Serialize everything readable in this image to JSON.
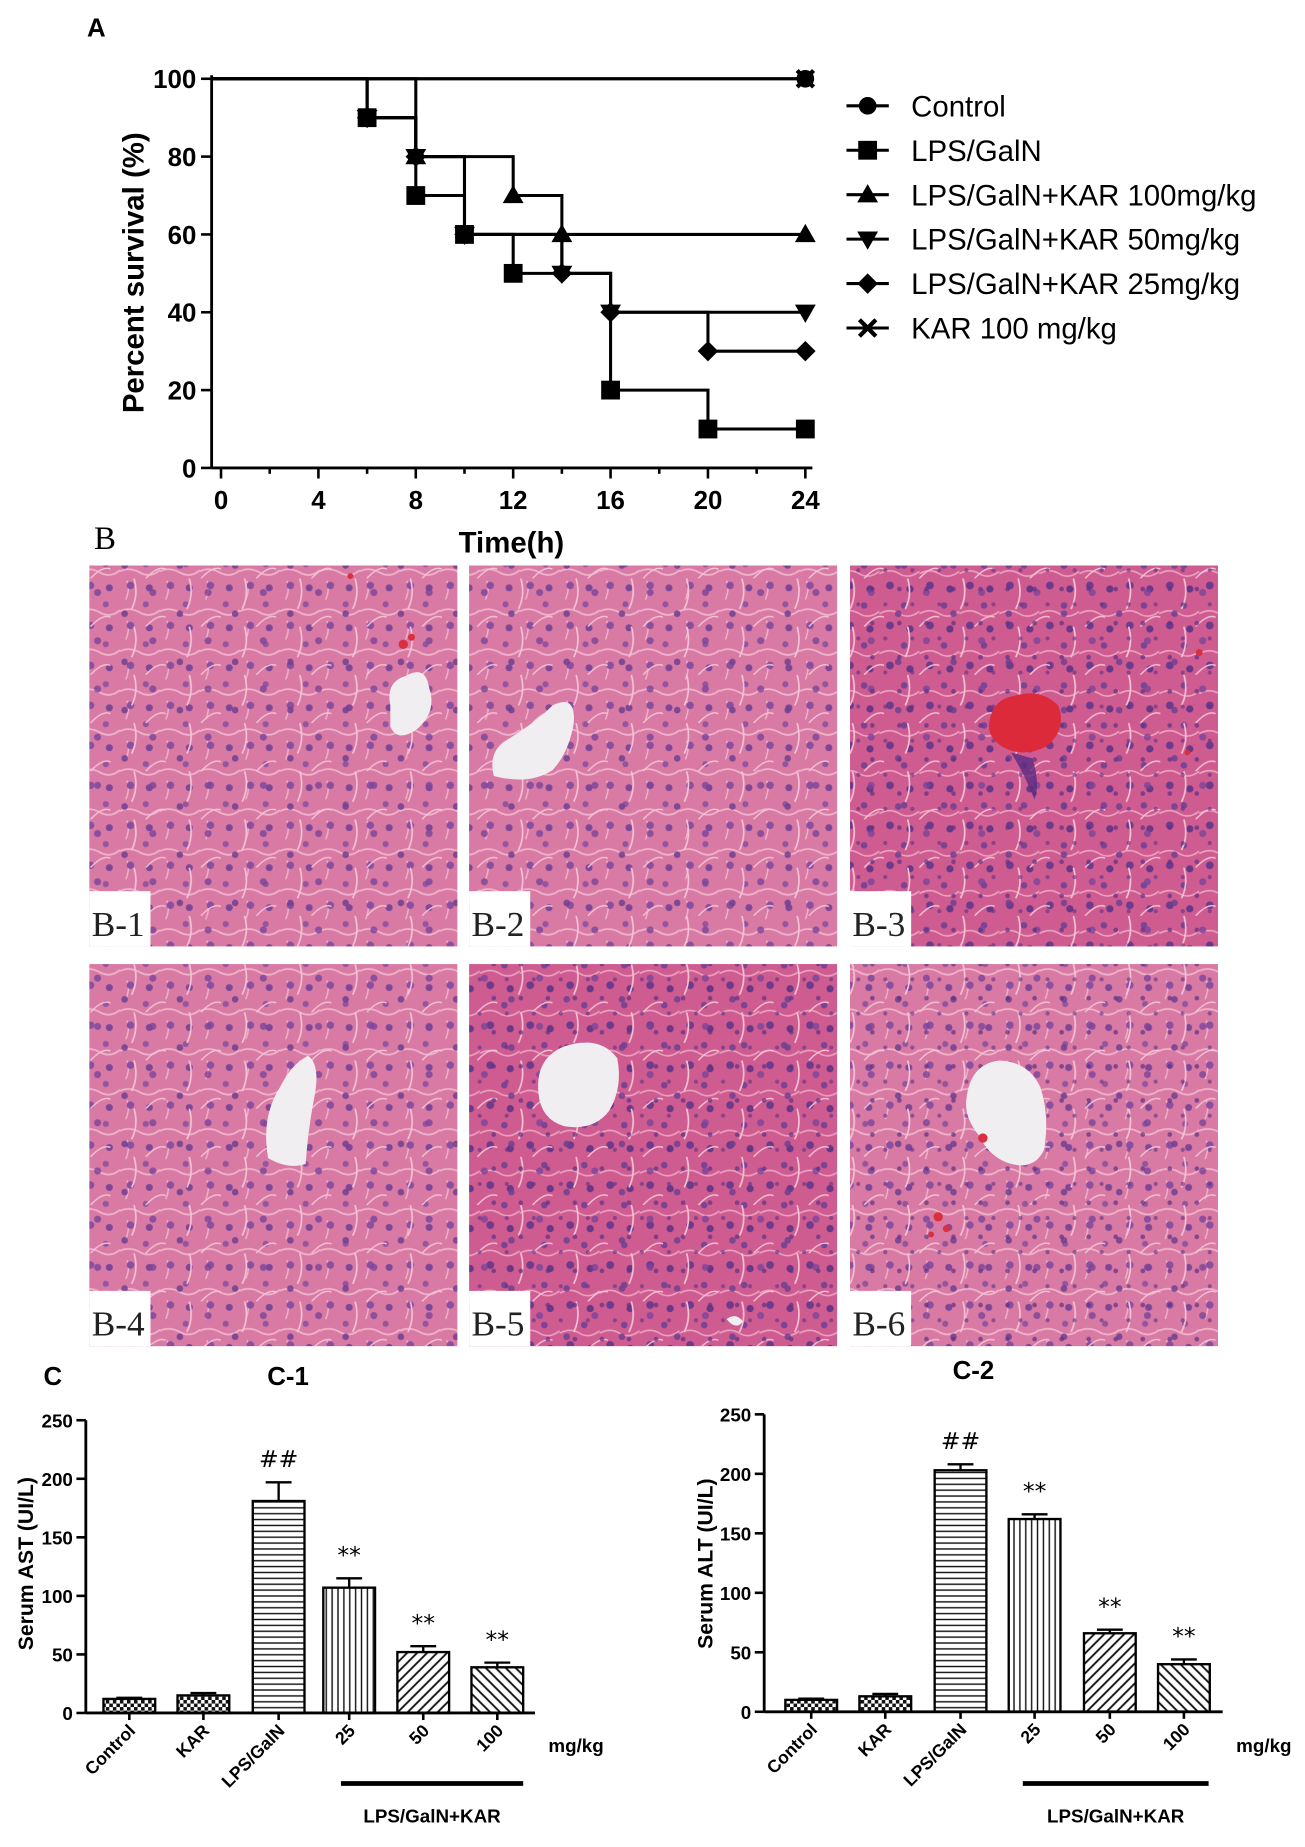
{
  "panel_labels": {
    "a": "A",
    "b": "B",
    "c": "C"
  },
  "histology": {
    "panels": [
      {
        "label": "B-1"
      },
      {
        "label": "B-2"
      },
      {
        "label": "B-3"
      },
      {
        "label": "B-4"
      },
      {
        "label": "B-5"
      },
      {
        "label": "B-6"
      }
    ]
  },
  "chart_data": [
    {
      "panel": "A",
      "type": "line",
      "step": true,
      "xlabel": "Time(h)",
      "ylabel": "Percent survival (%)",
      "xlim": [
        0,
        24
      ],
      "ylim": [
        0,
        100
      ],
      "xticks": [
        0,
        4,
        8,
        12,
        16,
        20,
        24
      ],
      "yticks": [
        0,
        20,
        40,
        60,
        80,
        100
      ],
      "grid": false,
      "legend": "right",
      "series": [
        {
          "name": "Control",
          "marker": "circle",
          "x": [
            0,
            24
          ],
          "y": [
            100,
            100
          ]
        },
        {
          "name": "LPS/GalN",
          "marker": "square",
          "x": [
            0,
            6,
            8,
            10,
            12,
            16,
            20,
            24
          ],
          "y": [
            100,
            90,
            70,
            60,
            50,
            20,
            10,
            10
          ]
        },
        {
          "name": "LPS/GalN+KAR 100mg/kg",
          "marker": "triangle-up",
          "x": [
            0,
            8,
            12,
            14,
            24
          ],
          "y": [
            100,
            80,
            70,
            60,
            60
          ]
        },
        {
          "name": "LPS/GalN+KAR 50mg/kg",
          "marker": "triangle-down",
          "x": [
            0,
            6,
            8,
            10,
            14,
            16,
            24
          ],
          "y": [
            100,
            90,
            80,
            60,
            50,
            40,
            40
          ]
        },
        {
          "name": "LPS/GalN+KAR 25mg/kg",
          "marker": "diamond",
          "x": [
            0,
            6,
            8,
            10,
            14,
            16,
            20,
            24
          ],
          "y": [
            100,
            90,
            80,
            60,
            50,
            40,
            30,
            30
          ]
        },
        {
          "name": "KAR 100 mg/kg",
          "marker": "cross",
          "x": [
            0,
            24
          ],
          "y": [
            100,
            100
          ]
        }
      ]
    },
    {
      "panel": "C-1",
      "type": "bar",
      "title": "C-1",
      "ylabel": "Serum AST (UI/L)",
      "ylim": [
        0,
        250
      ],
      "yticks": [
        0,
        50,
        100,
        150,
        200,
        250
      ],
      "categories": [
        "Control",
        "KAR",
        "LPS/GalN",
        "25",
        "50",
        "100"
      ],
      "values": [
        12,
        15,
        181,
        107,
        52,
        39
      ],
      "errors": [
        1,
        2,
        16,
        8,
        5,
        4
      ],
      "annotations": [
        "",
        "",
        "##",
        "**",
        "**",
        "**"
      ],
      "fill_patterns": [
        "checker",
        "checker",
        "horizontal-lines",
        "vertical-lines",
        "diagonal-up",
        "diagonal-down"
      ],
      "unit_label": "mg/kg",
      "group_label": "LPS/GalN+KAR",
      "group_categories": [
        "25",
        "50",
        "100"
      ]
    },
    {
      "panel": "C-2",
      "type": "bar",
      "title": "C-2",
      "ylabel": "Serum ALT (UI/L)",
      "ylim": [
        0,
        250
      ],
      "yticks": [
        0,
        50,
        100,
        150,
        200,
        250
      ],
      "categories": [
        "Control",
        "KAR",
        "LPS/GalN",
        "25",
        "50",
        "100"
      ],
      "values": [
        10,
        13,
        203,
        162,
        66,
        40
      ],
      "errors": [
        1,
        2,
        5,
        4,
        3,
        4
      ],
      "annotations": [
        "",
        "",
        "##",
        "**",
        "**",
        "**"
      ],
      "fill_patterns": [
        "checker",
        "checker",
        "horizontal-lines",
        "vertical-lines",
        "diagonal-up",
        "diagonal-down"
      ],
      "unit_label": "mg/kg",
      "group_label": "LPS/GalN+KAR",
      "group_categories": [
        "25",
        "50",
        "100"
      ]
    }
  ]
}
